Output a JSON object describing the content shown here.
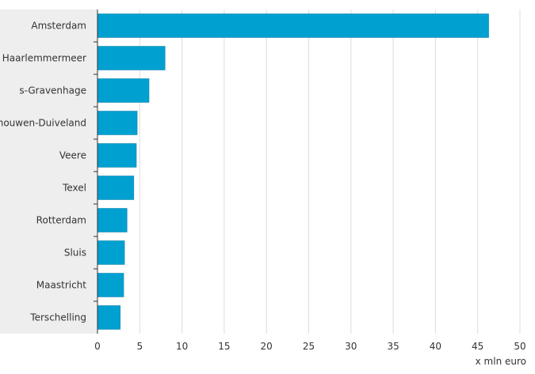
{
  "chart_data": {
    "type": "bar",
    "orientation": "horizontal",
    "categories": [
      "Amsterdam",
      "Haarlemmermeer",
      "s-Gravenhage",
      "Schouwen-Duiveland",
      "Veere",
      "Texel",
      "Rotterdam",
      "Sluis",
      "Maastricht",
      "Terschelling"
    ],
    "values": [
      46.3,
      8.0,
      6.1,
      4.7,
      4.6,
      4.3,
      3.5,
      3.2,
      3.1,
      2.7
    ],
    "xlabel": "x mln euro",
    "xlim": [
      0,
      50
    ],
    "xticks": [
      0,
      5,
      10,
      15,
      20,
      25,
      30,
      35,
      40,
      45,
      50
    ],
    "grid": "vertical",
    "bar_color": "#00a0d0",
    "label_band_color": "#eeeeee"
  }
}
